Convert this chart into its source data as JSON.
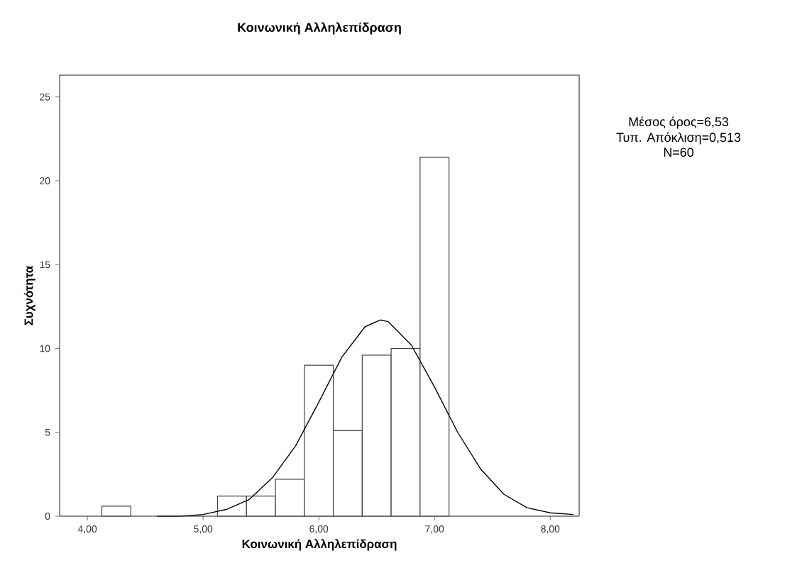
{
  "chart_data": {
    "type": "histogram",
    "title": "Κοινωνική Αλληλεπίδραση",
    "xlabel": "Κοινωνική Αλληλεπίδραση",
    "ylabel": "Συχνότητα",
    "bins": [
      4.125,
      4.375,
      4.625,
      4.875,
      5.125,
      5.375,
      5.625,
      5.875,
      6.125,
      6.375,
      6.625,
      6.875,
      7.125
    ],
    "values": [
      0.6,
      0,
      0,
      0,
      1.2,
      1.2,
      2.2,
      9.0,
      5.1,
      9.6,
      10.0,
      21.4
    ],
    "color": "#ffffff",
    "series": [
      {
        "type": "line",
        "color": "#000000",
        "x": [
          4.6,
          4.8,
          5.0,
          5.2,
          5.4,
          5.6,
          5.8,
          6.0,
          6.2,
          6.4,
          6.53,
          6.6,
          6.8,
          7.0,
          7.2,
          7.4,
          7.6,
          7.8,
          8.0,
          8.2
        ],
        "values": [
          0.0,
          0.0,
          0.1,
          0.4,
          1.0,
          2.3,
          4.2,
          6.8,
          9.5,
          11.3,
          11.7,
          11.6,
          10.2,
          7.7,
          5.0,
          2.8,
          1.3,
          0.5,
          0.2,
          0.1
        ]
      }
    ],
    "xlim": [
      3.76,
      8.25
    ],
    "ylim": [
      0,
      26.3
    ],
    "xticks": [
      {
        "value": 4,
        "label": "4,00"
      },
      {
        "value": 5,
        "label": "5,00"
      },
      {
        "value": 6,
        "label": "6,00"
      },
      {
        "value": 7,
        "label": "7,00"
      },
      {
        "value": 8,
        "label": "8,00"
      }
    ],
    "yticks": [
      0,
      5,
      10,
      15,
      20,
      25
    ],
    "grid": false,
    "annotations": [
      "Μέσος όρος=6,53",
      "Τυπ. Απόκλιση=0,513",
      "N=60"
    ]
  }
}
